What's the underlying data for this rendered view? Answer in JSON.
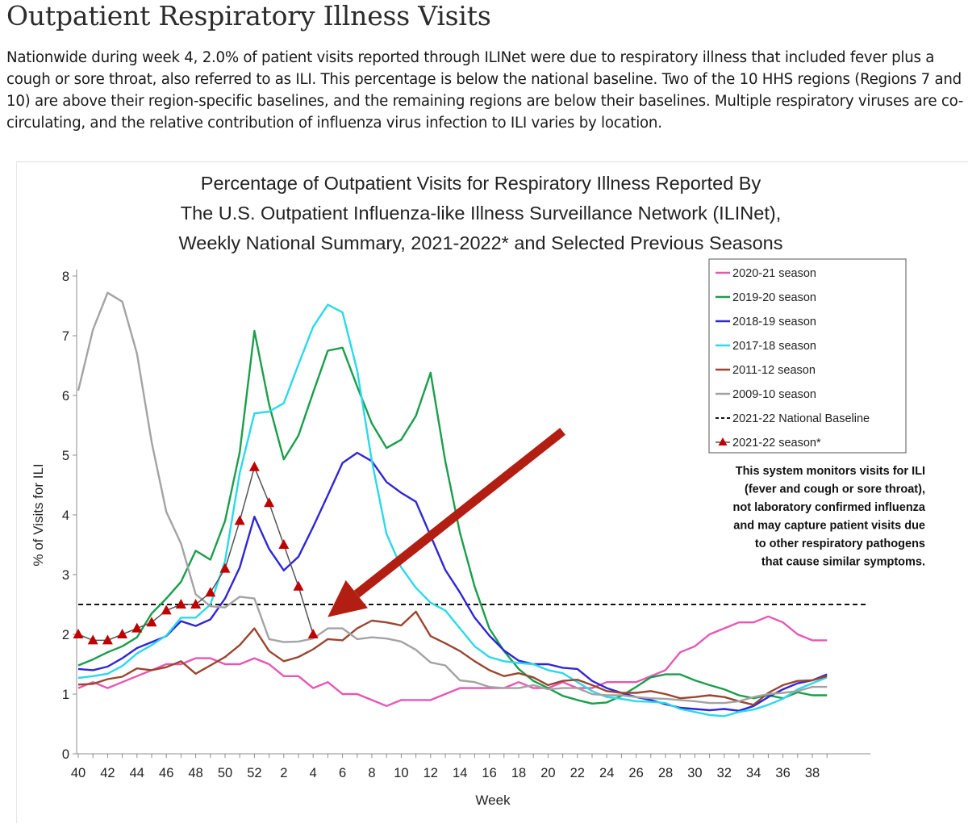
{
  "page": {
    "title": "Outpatient Respiratory Illness Visits",
    "intro": "Nationwide during week 4, 2.0% of patient visits reported through ILINet were due to respiratory illness that included fever plus a cough or sore throat, also referred to as ILI. This percentage is below the national baseline. Two of the 10 HHS regions (Regions 7 and 10) are above their region-specific baselines, and the remaining regions are below their baselines. Multiple respiratory viruses are co-circulating, and the relative contribution of influenza virus infection to ILI varies by location."
  },
  "chart_data": {
    "type": "line",
    "title_lines": [
      "Percentage of Outpatient Visits for Respiratory Illness Reported By",
      "The U.S. Outpatient Influenza-like Illness Surveillance Network (ILINet),",
      "Weekly National Summary, 2021-2022* and Selected Previous Seasons"
    ],
    "xlabel": "Week",
    "ylabel": "% of Visits for ILI",
    "ylim": [
      0,
      8
    ],
    "yticks": [
      "0",
      "1",
      "2",
      "3",
      "4",
      "5",
      "6",
      "7",
      "8"
    ],
    "xtick_labels": [
      "40",
      "42",
      "44",
      "46",
      "48",
      "50",
      "52",
      "2",
      "4",
      "6",
      "8",
      "10",
      "12",
      "14",
      "16",
      "18",
      "20",
      "22",
      "24",
      "26",
      "28",
      "30",
      "32",
      "34",
      "36",
      "38"
    ],
    "week_order": [
      40,
      41,
      42,
      43,
      44,
      45,
      46,
      47,
      48,
      49,
      50,
      51,
      52,
      1,
      2,
      3,
      4,
      5,
      6,
      7,
      8,
      9,
      10,
      11,
      12,
      13,
      14,
      15,
      16,
      17,
      18,
      19,
      20,
      21,
      22,
      23,
      24,
      25,
      26,
      27,
      28,
      29,
      30,
      31,
      32,
      33,
      34,
      35,
      36,
      37,
      38,
      39
    ],
    "baseline": {
      "name": "2021-22 National Baseline",
      "value": 2.5
    },
    "series": [
      {
        "name": "2020-21 season",
        "color": "#e756b4",
        "marker": "none",
        "values": [
          1.1,
          1.2,
          1.1,
          1.2,
          1.3,
          1.4,
          1.5,
          1.5,
          1.6,
          1.6,
          1.5,
          1.5,
          1.6,
          1.5,
          1.3,
          1.3,
          1.1,
          1.2,
          1.0,
          1.0,
          0.9,
          0.8,
          0.9,
          0.9,
          0.9,
          1.0,
          1.1,
          1.1,
          1.1,
          1.1,
          1.2,
          1.1,
          1.1,
          1.2,
          1.1,
          1.1,
          1.2,
          1.2,
          1.2,
          1.3,
          1.4,
          1.7,
          1.8,
          2.0,
          2.1,
          2.2,
          2.2,
          2.3,
          2.2,
          2.0,
          1.9,
          1.9
        ]
      },
      {
        "name": "2019-20 season",
        "color": "#1a9e4a",
        "marker": "none",
        "values": [
          1.48,
          1.58,
          1.7,
          1.8,
          1.95,
          2.35,
          2.6,
          2.88,
          3.4,
          3.25,
          3.9,
          5.05,
          7.08,
          5.85,
          4.93,
          5.33,
          6.05,
          6.75,
          6.8,
          6.15,
          5.53,
          5.12,
          5.26,
          5.66,
          6.38,
          4.9,
          3.7,
          2.8,
          2.1,
          1.72,
          1.42,
          1.22,
          1.1,
          0.97,
          0.9,
          0.84,
          0.86,
          0.97,
          1.12,
          1.28,
          1.33,
          1.33,
          1.23,
          1.15,
          1.08,
          0.98,
          0.93,
          0.98,
          0.93,
          1.03,
          0.98,
          0.98
        ]
      },
      {
        "name": "2018-19 season",
        "color": "#2f26d6",
        "marker": "none",
        "values": [
          1.42,
          1.4,
          1.46,
          1.6,
          1.77,
          1.87,
          1.97,
          2.22,
          2.14,
          2.25,
          2.6,
          3.12,
          3.97,
          3.43,
          3.07,
          3.3,
          3.8,
          4.33,
          4.87,
          5.04,
          4.9,
          4.55,
          4.37,
          4.22,
          3.65,
          3.08,
          2.7,
          2.28,
          1.98,
          1.73,
          1.56,
          1.5,
          1.5,
          1.44,
          1.42,
          1.22,
          1.1,
          1.02,
          0.95,
          0.9,
          0.83,
          0.77,
          0.75,
          0.73,
          0.75,
          0.72,
          0.8,
          0.95,
          1.08,
          1.18,
          1.23,
          1.33
        ]
      },
      {
        "name": "2017-18 season",
        "color": "#2ad9ea",
        "marker": "none",
        "values": [
          1.27,
          1.3,
          1.34,
          1.47,
          1.68,
          1.82,
          1.98,
          2.28,
          2.28,
          2.5,
          3.23,
          4.7,
          5.7,
          5.73,
          5.87,
          6.52,
          7.15,
          7.52,
          7.39,
          6.42,
          4.9,
          3.68,
          3.12,
          2.78,
          2.53,
          2.4,
          2.1,
          1.8,
          1.62,
          1.55,
          1.52,
          1.5,
          1.4,
          1.35,
          1.2,
          1.05,
          0.95,
          0.92,
          0.88,
          0.87,
          0.85,
          0.75,
          0.7,
          0.65,
          0.63,
          0.7,
          0.74,
          0.82,
          0.92,
          1.08,
          1.18,
          1.28
        ]
      },
      {
        "name": "2011-12 season",
        "color": "#9a4630",
        "marker": "none",
        "values": [
          1.16,
          1.17,
          1.25,
          1.29,
          1.43,
          1.4,
          1.45,
          1.55,
          1.34,
          1.48,
          1.62,
          1.82,
          2.1,
          1.72,
          1.55,
          1.62,
          1.75,
          1.92,
          1.9,
          2.1,
          2.23,
          2.2,
          2.15,
          2.38,
          1.97,
          1.85,
          1.72,
          1.55,
          1.4,
          1.3,
          1.35,
          1.28,
          1.15,
          1.22,
          1.24,
          1.15,
          1.05,
          1.02,
          1.02,
          1.05,
          1.0,
          0.93,
          0.95,
          0.98,
          0.95,
          0.88,
          0.82,
          1.02,
          1.15,
          1.22,
          1.23,
          1.3
        ]
      },
      {
        "name": "2009-10 season",
        "color": "#a3a3a3",
        "marker": "none",
        "values": [
          6.08,
          7.1,
          7.72,
          7.57,
          6.7,
          5.22,
          4.05,
          3.52,
          2.67,
          2.47,
          2.45,
          2.63,
          2.6,
          1.92,
          1.87,
          1.88,
          1.93,
          2.1,
          2.1,
          1.92,
          1.95,
          1.93,
          1.88,
          1.74,
          1.53,
          1.48,
          1.23,
          1.2,
          1.12,
          1.1,
          1.1,
          1.15,
          1.08,
          1.1,
          1.1,
          1.0,
          0.98,
          0.98,
          0.95,
          0.93,
          0.92,
          0.9,
          0.88,
          0.85,
          0.85,
          0.88,
          0.95,
          1.0,
          1.02,
          1.05,
          1.12,
          1.12
        ]
      },
      {
        "name": "2021-22 season*",
        "color": "#c00000",
        "line_color": "#555555",
        "marker": "triangle",
        "values": [
          2.0,
          1.9,
          1.9,
          2.0,
          2.1,
          2.2,
          2.4,
          2.5,
          2.5,
          2.7,
          3.1,
          3.9,
          4.8,
          4.2,
          3.5,
          2.8,
          2.0
        ]
      }
    ],
    "annotation": [
      "This system monitors visits for ILI",
      "(fever and cough or sore throat),",
      "not laboratory confirmed influenza",
      "and may capture patient visits due",
      "to other respiratory pathogens",
      "that cause similar symptoms."
    ],
    "arrow": {
      "from_week": 21,
      "from_value": 5.4,
      "to_week": 4,
      "to_value": 2.1,
      "color": "#b31e12"
    },
    "legend_position": "top-right"
  }
}
